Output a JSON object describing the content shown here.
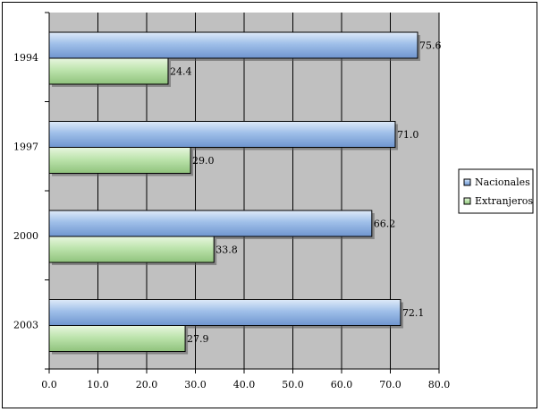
{
  "chart_data": {
    "type": "bar",
    "orientation": "horizontal",
    "categories": [
      "1994",
      "1997",
      "2000",
      "2003"
    ],
    "series": [
      {
        "name": "Nacionales",
        "values": [
          75.6,
          71.0,
          66.2,
          72.1
        ],
        "labels": [
          "75.6",
          "71.0",
          "66.2",
          "72.1"
        ],
        "color": "#8fb3e6"
      },
      {
        "name": "Extranjeros",
        "values": [
          24.4,
          29.0,
          33.8,
          27.9
        ],
        "labels": [
          "24.4",
          "29.0",
          "33.8",
          "27.9"
        ],
        "color": "#b7e2a6"
      }
    ],
    "x_ticks": [
      "0.0",
      "10.0",
      "20.0",
      "30.0",
      "40.0",
      "50.0",
      "60.0",
      "70.0",
      "80.0"
    ],
    "xlim": [
      0,
      80
    ],
    "plot_background": "#c0c0c0",
    "grid": true,
    "legend": "right"
  }
}
